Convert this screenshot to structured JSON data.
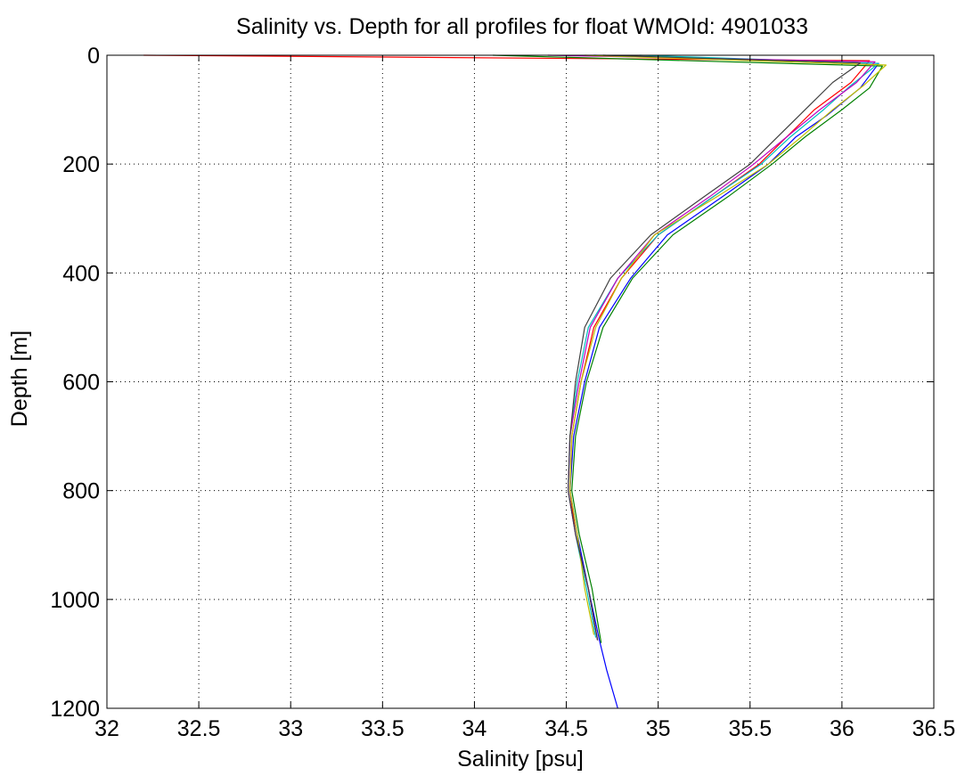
{
  "chart_data": {
    "type": "line",
    "title": "Salinity vs. Depth for all profiles for float WMOId: 4901033",
    "xlabel": "Salinity [psu]",
    "ylabel": "Depth [m]",
    "xlim": [
      32,
      36.5
    ],
    "ylim": [
      0,
      1200
    ],
    "y_reversed": true,
    "grid": true,
    "x_ticks": [
      32,
      32.5,
      33,
      33.5,
      34,
      34.5,
      35,
      35.5,
      36,
      36.5
    ],
    "y_ticks": [
      0,
      200,
      400,
      600,
      800,
      1000,
      1200
    ],
    "x_tick_labels": [
      "32",
      "32.5",
      "33",
      "33.5",
      "34",
      "34.5",
      "35",
      "35.5",
      "36",
      "36.5"
    ],
    "y_tick_labels": [
      "0",
      "200",
      "400",
      "600",
      "800",
      "1000",
      "1200"
    ],
    "series": [
      {
        "color": "#ff0000",
        "x": [
          32.2,
          36.15,
          36.05,
          35.85,
          35.7,
          35.55,
          35.3,
          35.0,
          34.8,
          34.65,
          34.58,
          34.53,
          34.52,
          34.55,
          34.62,
          34.67
        ],
        "y": [
          0,
          10,
          50,
          100,
          150,
          200,
          260,
          330,
          410,
          500,
          600,
          700,
          800,
          880,
          980,
          1075
        ]
      },
      {
        "color": "#0000ff",
        "x": [
          34.65,
          36.2,
          36.1,
          35.92,
          35.75,
          35.6,
          35.35,
          35.05,
          34.85,
          34.68,
          34.6,
          34.54,
          34.52,
          34.56,
          34.62,
          34.68,
          34.72,
          34.78
        ],
        "y": [
          0,
          15,
          60,
          110,
          150,
          200,
          260,
          330,
          410,
          500,
          600,
          700,
          800,
          880,
          980,
          1075,
          1130,
          1200
        ]
      },
      {
        "color": "#008000",
        "x": [
          34.1,
          36.22,
          36.15,
          36.0,
          35.8,
          35.62,
          35.38,
          35.08,
          34.86,
          34.7,
          34.61,
          34.55,
          34.53,
          34.57,
          34.64,
          34.69
        ],
        "y": [
          0,
          20,
          60,
          100,
          150,
          200,
          260,
          330,
          410,
          500,
          600,
          700,
          800,
          880,
          980,
          1080
        ]
      },
      {
        "color": "#00bfbf",
        "x": [
          34.9,
          36.2,
          36.05,
          35.9,
          35.72,
          35.56,
          35.3,
          35.0,
          34.78,
          34.62,
          34.56,
          34.52,
          34.51,
          34.55,
          34.61,
          34.66
        ],
        "y": [
          0,
          15,
          55,
          100,
          150,
          200,
          260,
          330,
          410,
          500,
          600,
          700,
          800,
          880,
          980,
          1070
        ]
      },
      {
        "color": "#bf00bf",
        "x": [
          34.4,
          36.18,
          36.08,
          35.88,
          35.7,
          35.52,
          35.28,
          34.98,
          34.78,
          34.63,
          34.57,
          34.52,
          34.51,
          34.55,
          34.62,
          34.67
        ],
        "y": [
          0,
          12,
          50,
          100,
          150,
          200,
          260,
          330,
          410,
          500,
          600,
          700,
          800,
          880,
          980,
          1075
        ]
      },
      {
        "color": "#bfbf00",
        "x": [
          34.6,
          36.24,
          36.12,
          35.95,
          35.78,
          35.6,
          35.32,
          34.98,
          34.8,
          34.66,
          34.58,
          34.53,
          34.52,
          34.56,
          34.6,
          34.65
        ],
        "y": [
          0,
          18,
          55,
          100,
          150,
          200,
          260,
          330,
          410,
          500,
          600,
          700,
          800,
          880,
          980,
          1065
        ]
      },
      {
        "color": "#404040",
        "x": [
          34.7,
          36.1,
          35.95,
          35.8,
          35.65,
          35.5,
          35.25,
          34.96,
          34.74,
          34.6,
          34.55,
          34.52,
          34.51,
          34.55,
          34.62,
          34.67
        ],
        "y": [
          0,
          14,
          50,
          100,
          150,
          200,
          260,
          330,
          410,
          500,
          600,
          700,
          800,
          880,
          980,
          1075
        ]
      }
    ]
  }
}
